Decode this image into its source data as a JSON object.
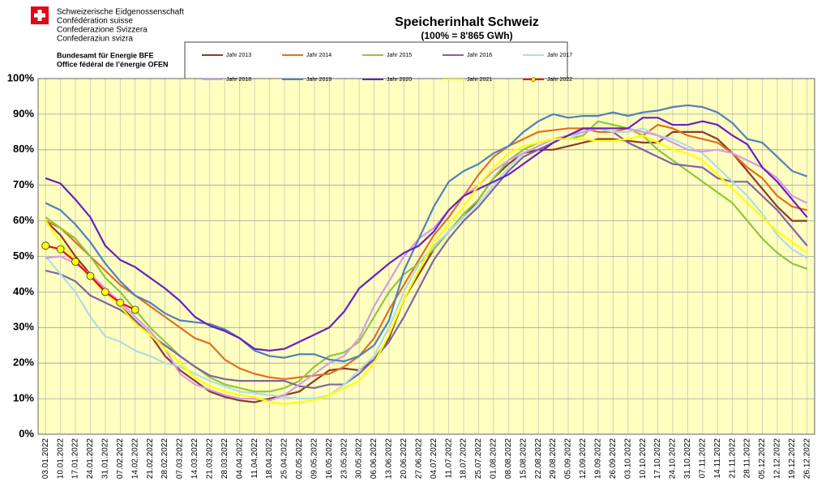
{
  "header": {
    "lines": [
      "Schweizerische Eidgenossenschaft",
      "Confédération suisse",
      "Confederazione Svizzera",
      "Confederaziun svizra"
    ],
    "office": [
      "Bundesamt für Energie BFE",
      "Office fédéral de l’énergie OFEN"
    ]
  },
  "chart_data": {
    "type": "line",
    "title": "Speicherinhalt Schweiz",
    "subtitle": "(100% = 8'865 GWh)",
    "categories": [
      "03.01.2022",
      "10.01.2022",
      "17.01.2022",
      "24.01.2022",
      "31.01.2022",
      "07.02.2022",
      "14.02.2022",
      "21.02.2022",
      "28.02.2022",
      "07.03.2022",
      "14.03.2022",
      "21.03.2022",
      "28.03.2022",
      "04.04.2022",
      "11.04.2022",
      "18.04.2022",
      "25.04.2022",
      "02.05.2022",
      "09.05.2022",
      "16.05.2022",
      "23.05.2022",
      "30.05.2022",
      "06.06.2022",
      "13.06.2022",
      "20.06.2022",
      "27.06.2022",
      "04.07.2022",
      "11.07.2022",
      "18.07.2022",
      "25.07.2022",
      "01.08.2022",
      "08.08.2022",
      "15.08.2022",
      "22.08.2022",
      "29.08.2022",
      "05.09.2022",
      "12.09.2022",
      "19.09.2022",
      "26.09.2022",
      "03.10.2022",
      "10.10.2022",
      "17.10.2022",
      "24.10.2022",
      "31.10.2022",
      "07.11.2022",
      "14.11.2022",
      "21.11.2022",
      "28.11.2022",
      "05.12.2022",
      "12.12.2022",
      "19.12.2022",
      "26.12.2022"
    ],
    "ylim": [
      0,
      100
    ],
    "yticks": [
      {
        "value": 0,
        "label": "0%"
      },
      {
        "value": 10,
        "label": "10%"
      },
      {
        "value": 20,
        "label": "20%"
      },
      {
        "value": 30,
        "label": "30%"
      },
      {
        "value": 40,
        "label": "40%"
      },
      {
        "value": 50,
        "label": "50%"
      },
      {
        "value": 60,
        "label": "60%"
      },
      {
        "value": 70,
        "label": "70%"
      },
      {
        "value": 80,
        "label": "80%"
      },
      {
        "value": 90,
        "label": "90%"
      },
      {
        "value": 100,
        "label": "100%"
      }
    ],
    "grid": true,
    "series": [
      {
        "name": "Jahr 2013",
        "color": "#8B3A2A",
        "values": [
          60,
          56,
          50,
          45,
          40,
          36,
          32,
          28,
          22,
          18,
          15,
          12,
          10.5,
          9.5,
          9,
          10,
          11,
          12,
          15,
          18,
          18.5,
          18,
          21,
          27,
          38,
          45,
          52,
          57,
          61,
          66,
          72,
          76,
          79,
          80,
          80,
          81,
          82,
          83,
          83,
          82.5,
          82,
          82,
          85,
          85,
          85,
          83,
          79,
          74,
          69,
          64,
          60,
          60
        ]
      },
      {
        "name": "Jahr 2014",
        "color": "#E07020",
        "values": [
          60,
          58,
          54,
          50,
          46,
          42,
          39,
          36,
          33,
          30,
          27,
          25.5,
          21,
          18.5,
          17,
          16,
          15.5,
          16,
          16.5,
          17,
          19,
          22,
          27,
          35,
          42,
          49,
          56,
          61,
          67,
          73,
          78,
          81,
          83,
          85,
          85.5,
          86,
          86,
          85,
          85,
          86,
          84,
          87,
          86,
          84,
          83,
          82,
          79,
          75,
          72,
          67,
          64,
          63
        ]
      },
      {
        "name": "Jahr 2015",
        "color": "#8DC63F",
        "values": [
          61,
          58,
          55,
          50,
          44,
          40,
          35,
          30,
          26,
          22,
          19,
          16,
          14,
          13,
          12,
          12,
          13,
          15,
          19,
          22,
          23,
          26,
          33,
          40,
          45,
          48,
          52,
          57,
          62,
          66,
          72,
          77,
          80,
          82,
          83,
          83,
          84,
          88,
          87,
          86,
          84,
          80,
          77,
          74,
          71,
          68,
          65,
          60,
          55,
          51,
          48,
          46.5
        ]
      },
      {
        "name": "Jahr 2016",
        "color": "#8064A2",
        "values": [
          46,
          45,
          43,
          39,
          37,
          35,
          32,
          28,
          25,
          22,
          19,
          16.5,
          15.5,
          15,
          15,
          15,
          15,
          13.5,
          13,
          14,
          14,
          17,
          21,
          26,
          33,
          41,
          49,
          55,
          60,
          64,
          69,
          74,
          78,
          80,
          82,
          84,
          86,
          86,
          85,
          82,
          80,
          78,
          76,
          75.5,
          75,
          72,
          71,
          71,
          67,
          63,
          58,
          53
        ]
      },
      {
        "name": "Jahr 2017",
        "color": "#B0DCE8",
        "values": [
          50,
          45,
          40,
          33,
          27.5,
          26,
          23.5,
          22,
          20,
          19,
          17,
          15,
          13.5,
          12,
          11.5,
          11,
          10.5,
          10,
          10,
          11,
          14,
          18,
          22,
          30,
          40,
          48,
          53,
          57,
          61,
          65,
          70,
          75,
          79,
          81,
          83,
          83,
          85,
          86,
          85,
          85,
          86,
          84,
          83,
          81,
          79,
          75,
          71,
          67,
          62,
          56,
          52,
          49.5
        ]
      },
      {
        "name": "Jahr 2018",
        "color": "#D89AE8",
        "values": [
          49.5,
          50,
          48,
          45,
          41,
          37,
          33,
          29,
          24,
          17,
          14,
          12.5,
          11,
          10,
          10,
          9.5,
          11,
          14,
          17,
          20,
          22,
          27,
          36,
          43,
          50,
          55,
          58,
          63,
          67,
          70,
          74,
          77,
          79,
          81,
          83,
          84,
          85,
          86,
          86,
          86,
          85,
          84,
          82,
          80,
          79.5,
          80,
          79,
          77,
          75,
          72,
          67,
          65
        ]
      },
      {
        "name": "Jahr 2019",
        "color": "#4F81BD",
        "values": [
          65,
          63,
          59,
          54,
          48,
          43,
          39,
          37,
          34,
          32,
          31.5,
          31,
          29.5,
          27,
          23.5,
          22,
          21.5,
          22.5,
          22.5,
          21,
          20.5,
          22,
          25,
          32,
          46,
          55,
          64,
          71,
          74,
          76,
          79,
          81,
          85,
          88,
          90,
          89,
          89.5,
          89.5,
          90.5,
          89.5,
          90.5,
          91,
          92,
          92.5,
          92,
          90.5,
          87.5,
          83,
          82,
          78,
          74,
          72.5
        ]
      },
      {
        "name": "Jahr 2020",
        "color": "#6A1FC0",
        "values": [
          72,
          70.5,
          66,
          61,
          53,
          49,
          47,
          44,
          41,
          37.5,
          33,
          30.5,
          29,
          27,
          24,
          23.5,
          24,
          26,
          28,
          30,
          34.5,
          41,
          44.5,
          48,
          51,
          53,
          57,
          63,
          67,
          69,
          71,
          73,
          76,
          79,
          82,
          84,
          86,
          86,
          86,
          86,
          89,
          89,
          87,
          87,
          88,
          87,
          84,
          81.5,
          75,
          71,
          66,
          61
        ]
      },
      {
        "name": "Jahr 2021",
        "color": "#FFFF00",
        "values": [
          60,
          54,
          49,
          44,
          40,
          36,
          31,
          28,
          24,
          20,
          16,
          13.5,
          12,
          11,
          10.5,
          9,
          8.5,
          9,
          9.5,
          11,
          13,
          15,
          20,
          28,
          38,
          46,
          54,
          59,
          64,
          70,
          75,
          79,
          81,
          82,
          83,
          83,
          83,
          82.5,
          82.5,
          83,
          84,
          82,
          80,
          79,
          77,
          73,
          69,
          65,
          61,
          57,
          54,
          51
        ]
      },
      {
        "name": "Jahr 2022",
        "color": "#FF0000",
        "marker": "circle",
        "marker_color": "#FFFF00",
        "values": [
          53,
          52,
          48.5,
          44.5,
          40,
          37,
          35,
          null,
          null,
          null,
          null,
          null,
          null,
          null,
          null,
          null,
          null,
          null,
          null,
          null,
          null,
          null,
          null,
          null,
          null,
          null,
          null,
          null,
          null,
          null,
          null,
          null,
          null,
          null,
          null,
          null,
          null,
          null,
          null,
          null,
          null,
          null,
          null,
          null,
          null,
          null,
          null,
          null,
          null,
          null,
          null,
          null
        ]
      }
    ]
  }
}
